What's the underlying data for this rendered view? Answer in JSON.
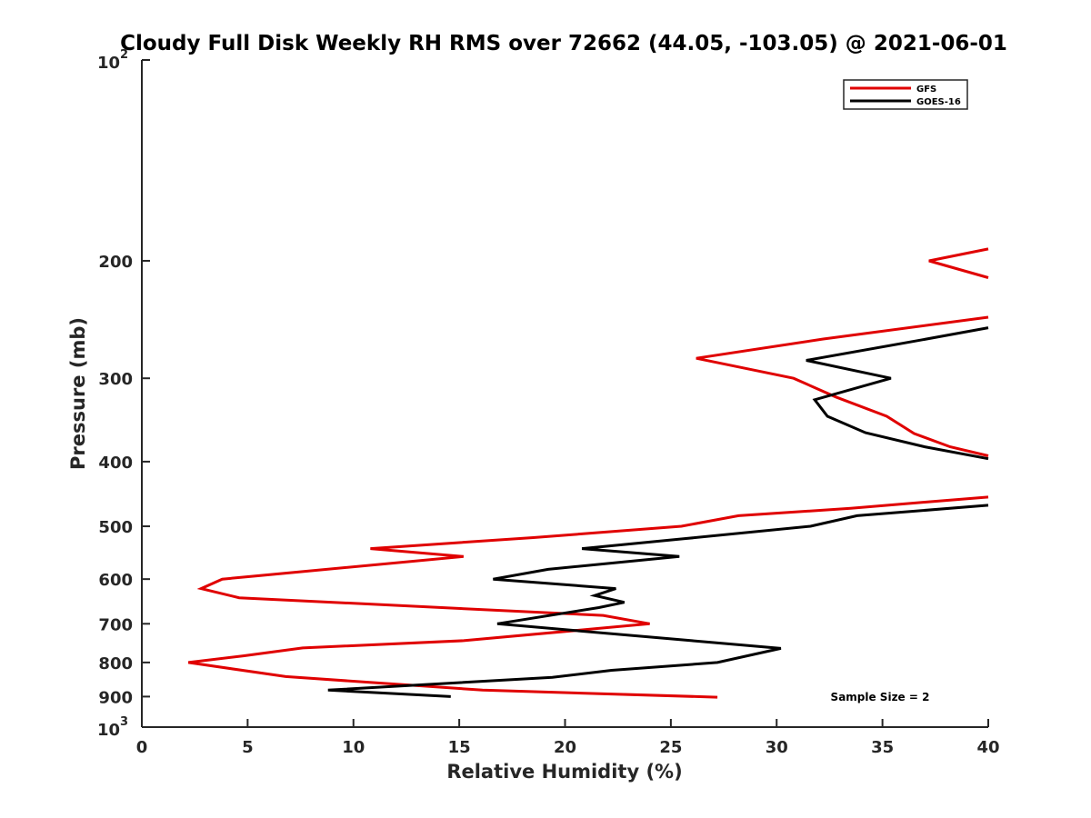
{
  "chart_data": {
    "type": "line",
    "title": "Cloudy Full Disk Weekly RH RMS over 72662 (44.05, -103.05) @ 2021-06-01",
    "xlabel": "Relative Humidity (%)",
    "ylabel": "Pressure (mb)",
    "xlim": [
      0,
      40
    ],
    "ylim": [
      100,
      1000
    ],
    "y_scale": "log",
    "y_reversed": true,
    "grid": false,
    "legend_position": "top-right",
    "x_ticks": [
      0,
      5,
      10,
      15,
      20,
      25,
      30,
      35,
      40
    ],
    "y_ticks": [
      {
        "value": 100,
        "base": "10",
        "exp": "2"
      },
      {
        "value": 200,
        "label": "200"
      },
      {
        "value": 300,
        "label": "300"
      },
      {
        "value": 400,
        "label": "400"
      },
      {
        "value": 500,
        "label": "500"
      },
      {
        "value": 600,
        "label": "600"
      },
      {
        "value": 700,
        "label": "700"
      },
      {
        "value": 800,
        "label": "800"
      },
      {
        "value": 900,
        "label": "900"
      },
      {
        "value": 1000,
        "base": "10",
        "exp": "3"
      }
    ],
    "series": [
      {
        "name": "GFS",
        "color": "#e00000",
        "points": [
          [
            40.0,
            192
          ],
          [
            37.2,
            200
          ],
          [
            40.0,
            212
          ],
          [
            null,
            null
          ],
          [
            40.0,
            243
          ],
          [
            32.2,
            262
          ],
          [
            26.2,
            280
          ],
          [
            30.8,
            300
          ],
          [
            32.8,
            320
          ],
          [
            35.2,
            342
          ],
          [
            36.5,
            363
          ],
          [
            38.2,
            380
          ],
          [
            40.0,
            392
          ],
          [
            null,
            null
          ],
          [
            40.0,
            452
          ],
          [
            37.0,
            460
          ],
          [
            33.5,
            470
          ],
          [
            28.2,
            482
          ],
          [
            25.5,
            500
          ],
          [
            18.5,
            520
          ],
          [
            10.8,
            540
          ],
          [
            15.2,
            555
          ],
          [
            3.8,
            600
          ],
          [
            2.8,
            620
          ],
          [
            4.6,
            640
          ],
          [
            21.8,
            680
          ],
          [
            24.0,
            700
          ],
          [
            15.2,
            742
          ],
          [
            7.6,
            761
          ],
          [
            4.8,
            782
          ],
          [
            2.2,
            800
          ],
          [
            6.8,
            840
          ],
          [
            16.1,
            880
          ],
          [
            27.2,
            902
          ]
        ]
      },
      {
        "name": "GOES-16",
        "color": "#000000",
        "points": [
          [
            40.0,
            252
          ],
          [
            36.8,
            263
          ],
          [
            31.4,
            282
          ],
          [
            35.4,
            300
          ],
          [
            31.8,
            323
          ],
          [
            32.4,
            342
          ],
          [
            34.2,
            362
          ],
          [
            37.0,
            380
          ],
          [
            40.0,
            396
          ],
          [
            null,
            null
          ],
          [
            40.0,
            465
          ],
          [
            33.8,
            482
          ],
          [
            31.6,
            500
          ],
          [
            25.6,
            522
          ],
          [
            20.8,
            540
          ],
          [
            25.4,
            555
          ],
          [
            19.2,
            580
          ],
          [
            16.6,
            600
          ],
          [
            22.4,
            620
          ],
          [
            21.4,
            635
          ],
          [
            22.8,
            650
          ],
          [
            21.6,
            662
          ],
          [
            16.8,
            700
          ],
          [
            26.0,
            742
          ],
          [
            30.2,
            762
          ],
          [
            27.2,
            800
          ],
          [
            22.2,
            822
          ],
          [
            19.4,
            842
          ],
          [
            8.8,
            880
          ],
          [
            14.6,
            900
          ]
        ]
      }
    ],
    "annotation": "Sample Size = 2"
  }
}
